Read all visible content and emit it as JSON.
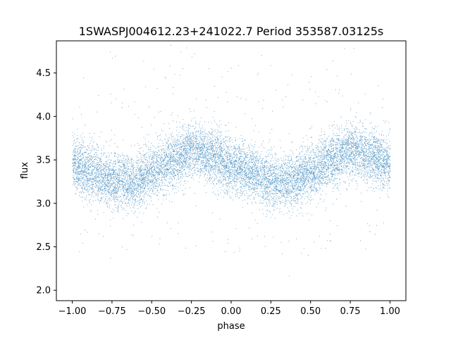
{
  "chart_data": {
    "type": "scatter",
    "title": "1SWASPJ004612.23+241022.7 Period 353587.03125s",
    "xlabel": "phase",
    "ylabel": "flux",
    "xlim": [
      -1.1,
      1.1
    ],
    "ylim": [
      1.88,
      4.87
    ],
    "grid": false,
    "xticks": [
      -1.0,
      -0.75,
      -0.5,
      -0.25,
      0.0,
      0.25,
      0.5,
      0.75,
      1.0
    ],
    "xtick_labels": [
      "−1.00",
      "−0.75",
      "−0.50",
      "−0.25",
      "0.00",
      "0.25",
      "0.50",
      "0.75",
      "1.00"
    ],
    "yticks": [
      2.0,
      2.5,
      3.0,
      3.5,
      4.0,
      4.5
    ],
    "ytick_labels": [
      "2.0",
      "2.5",
      "3.0",
      "3.5",
      "4.0",
      "4.5"
    ],
    "series": [
      {
        "color": "#1f77b4",
        "phase_range": [
          -1.0,
          1.0
        ],
        "trend_x": [
          -1.0,
          -0.875,
          -0.75,
          -0.625,
          -0.5,
          -0.375,
          -0.25,
          -0.125,
          0.0,
          0.125,
          0.25,
          0.375,
          0.5,
          0.625,
          0.75,
          0.875,
          1.0
        ],
        "trend_y": [
          3.45,
          3.35,
          3.25,
          3.25,
          3.35,
          3.5,
          3.62,
          3.55,
          3.45,
          3.35,
          3.25,
          3.25,
          3.35,
          3.5,
          3.62,
          3.55,
          3.45
        ],
        "spread": 0.28,
        "min": 2.0,
        "max": 4.83
      }
    ]
  }
}
